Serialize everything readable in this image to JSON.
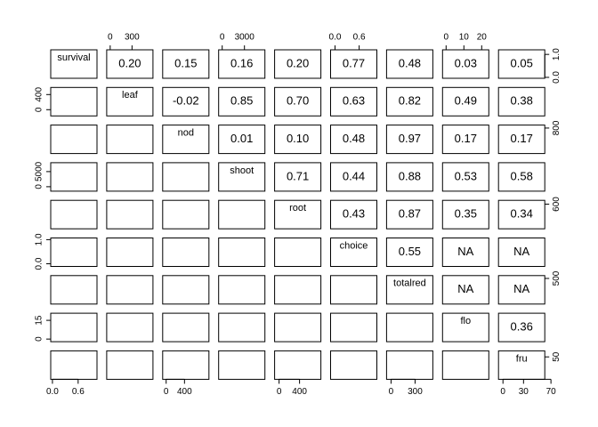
{
  "chart_data": {
    "type": "pairs",
    "variables": [
      "survival",
      "leaf",
      "nod",
      "shoot",
      "root",
      "choice",
      "totalred",
      "flo",
      "fru"
    ],
    "correlations": [
      [
        "0.20",
        "0.15",
        "0.16",
        "0.20",
        "0.77",
        "0.48",
        "0.03",
        "0.05"
      ],
      [
        "-0.02",
        "0.85",
        "0.70",
        "0.63",
        "0.82",
        "0.49",
        "0.38"
      ],
      [
        "0.01",
        "0.10",
        "0.48",
        "0.97",
        "0.17",
        "0.17"
      ],
      [
        "0.71",
        "0.44",
        "0.88",
        "0.53",
        "0.58"
      ],
      [
        "0.43",
        "0.87",
        "0.35",
        "0.34"
      ],
      [
        "0.55",
        "NA",
        "NA"
      ],
      [
        "NA",
        "NA"
      ],
      [
        "0.36"
      ]
    ],
    "x_axes": [
      {
        "variable": "survival",
        "side": "bottom",
        "xlim": [
          -0.04,
          1.04
        ],
        "xticks": [
          {
            "value": 0,
            "label": "0.0"
          },
          {
            "value": 0.6,
            "label": "0.6"
          }
        ]
      },
      {
        "variable": "leaf",
        "side": "top",
        "xlim": [
          -48,
          588
        ],
        "xticks": [
          0,
          300
        ]
      },
      {
        "variable": "nod",
        "side": "bottom",
        "xlim": [
          -76,
          933
        ],
        "xticks": [
          0,
          400
        ]
      },
      {
        "variable": "shoot",
        "side": "top",
        "xlim": [
          -480,
          5760
        ],
        "xticks": [
          0,
          3000
        ]
      },
      {
        "variable": "root",
        "side": "bottom",
        "xlim": [
          -87,
          817
        ],
        "xticks": [
          0,
          400
        ]
      },
      {
        "variable": "choice",
        "side": "top",
        "xlim": [
          -0.11,
          1.04
        ],
        "xticks": [
          {
            "value": 0,
            "label": "0.0"
          },
          {
            "value": 0.6,
            "label": "0.6"
          }
        ]
      },
      {
        "variable": "totalred",
        "side": "bottom",
        "xlim": [
          -56,
          522
        ],
        "xticks": [
          0,
          300
        ]
      },
      {
        "variable": "flo",
        "side": "top",
        "xlim": [
          -2,
          24
        ],
        "xticks": [
          0,
          10,
          20
        ]
      },
      {
        "variable": "fru",
        "side": "bottom",
        "xlim": [
          -6.5,
          61
        ],
        "xticks": [
          0,
          30,
          70
        ]
      }
    ],
    "y_axes": [
      {
        "variable": "survival",
        "side": "right",
        "ylim": [
          -0.04,
          1.2
        ],
        "yticks": [
          {
            "value": 0,
            "label": "0.0"
          },
          {
            "value": 1,
            "label": "1.0"
          }
        ]
      },
      {
        "variable": "leaf",
        "side": "left",
        "ylim": [
          -165,
          588
        ],
        "yticks": [
          0,
          400
        ]
      },
      {
        "variable": "nod",
        "side": "right",
        "ylim": [
          -60,
          900
        ],
        "yticks": [
          800
        ]
      },
      {
        "variable": "shoot",
        "side": "left",
        "ylim": [
          -1470,
          7940
        ],
        "yticks": [
          0,
          5000
        ]
      },
      {
        "variable": "root",
        "side": "right",
        "ylim": [
          -50,
          700
        ],
        "yticks": [
          600
        ]
      },
      {
        "variable": "choice",
        "side": "left",
        "ylim": [
          -0.11,
          1.07
        ],
        "yticks": [
          {
            "value": 0,
            "label": "0.0"
          },
          {
            "value": 1,
            "label": "1.0"
          }
        ]
      },
      {
        "variable": "totalred",
        "side": "right",
        "ylim": [
          -40,
          560
        ],
        "yticks": [
          500
        ]
      },
      {
        "variable": "flo",
        "side": "left",
        "ylim": [
          -2.1,
          20.7
        ],
        "yticks": [
          0,
          15
        ]
      },
      {
        "variable": "fru",
        "side": "right",
        "ylim": [
          -9.5,
          66
        ],
        "yticks": [
          50
        ]
      }
    ]
  }
}
